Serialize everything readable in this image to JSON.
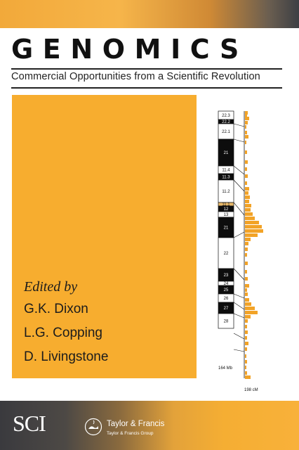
{
  "cover": {
    "title": "GENOMICS",
    "subtitle": "Commercial Opportunities from a Scientific Revolution",
    "edited_by": "Edited by",
    "editors": [
      "G.K. Dixon",
      "L.G. Copping",
      "D. Livingstone"
    ]
  },
  "chromosome": {
    "bands": [
      {
        "label": "22.3",
        "stain": "white"
      },
      {
        "label": "22.2",
        "stain": "black"
      },
      {
        "label": "22.1",
        "stain": "white"
      },
      {
        "label": "21",
        "stain": "black"
      },
      {
        "label": "11.4",
        "stain": "white"
      },
      {
        "label": "11.3",
        "stain": "black"
      },
      {
        "label": "11.2",
        "stain": "white"
      },
      {
        "label": "11.1",
        "stain": "centromere"
      },
      {
        "label": "12",
        "stain": "black"
      },
      {
        "label": "13",
        "stain": "white"
      },
      {
        "label": "21",
        "stain": "black"
      },
      {
        "label": "22",
        "stain": "white"
      },
      {
        "label": "23",
        "stain": "black"
      },
      {
        "label": "24",
        "stain": "white"
      },
      {
        "label": "25",
        "stain": "black"
      },
      {
        "label": "26",
        "stain": "white"
      },
      {
        "label": "27",
        "stain": "black"
      },
      {
        "label": "28",
        "stain": "white"
      }
    ],
    "physical_length_label": "164 Mb",
    "genetic_length_label": "198 cM",
    "accent_color": "#f2a327"
  },
  "footer": {
    "sci_logo": "SCI",
    "publisher": "Taylor & Francis",
    "publisher_group": "Taylor & Francis Group"
  }
}
